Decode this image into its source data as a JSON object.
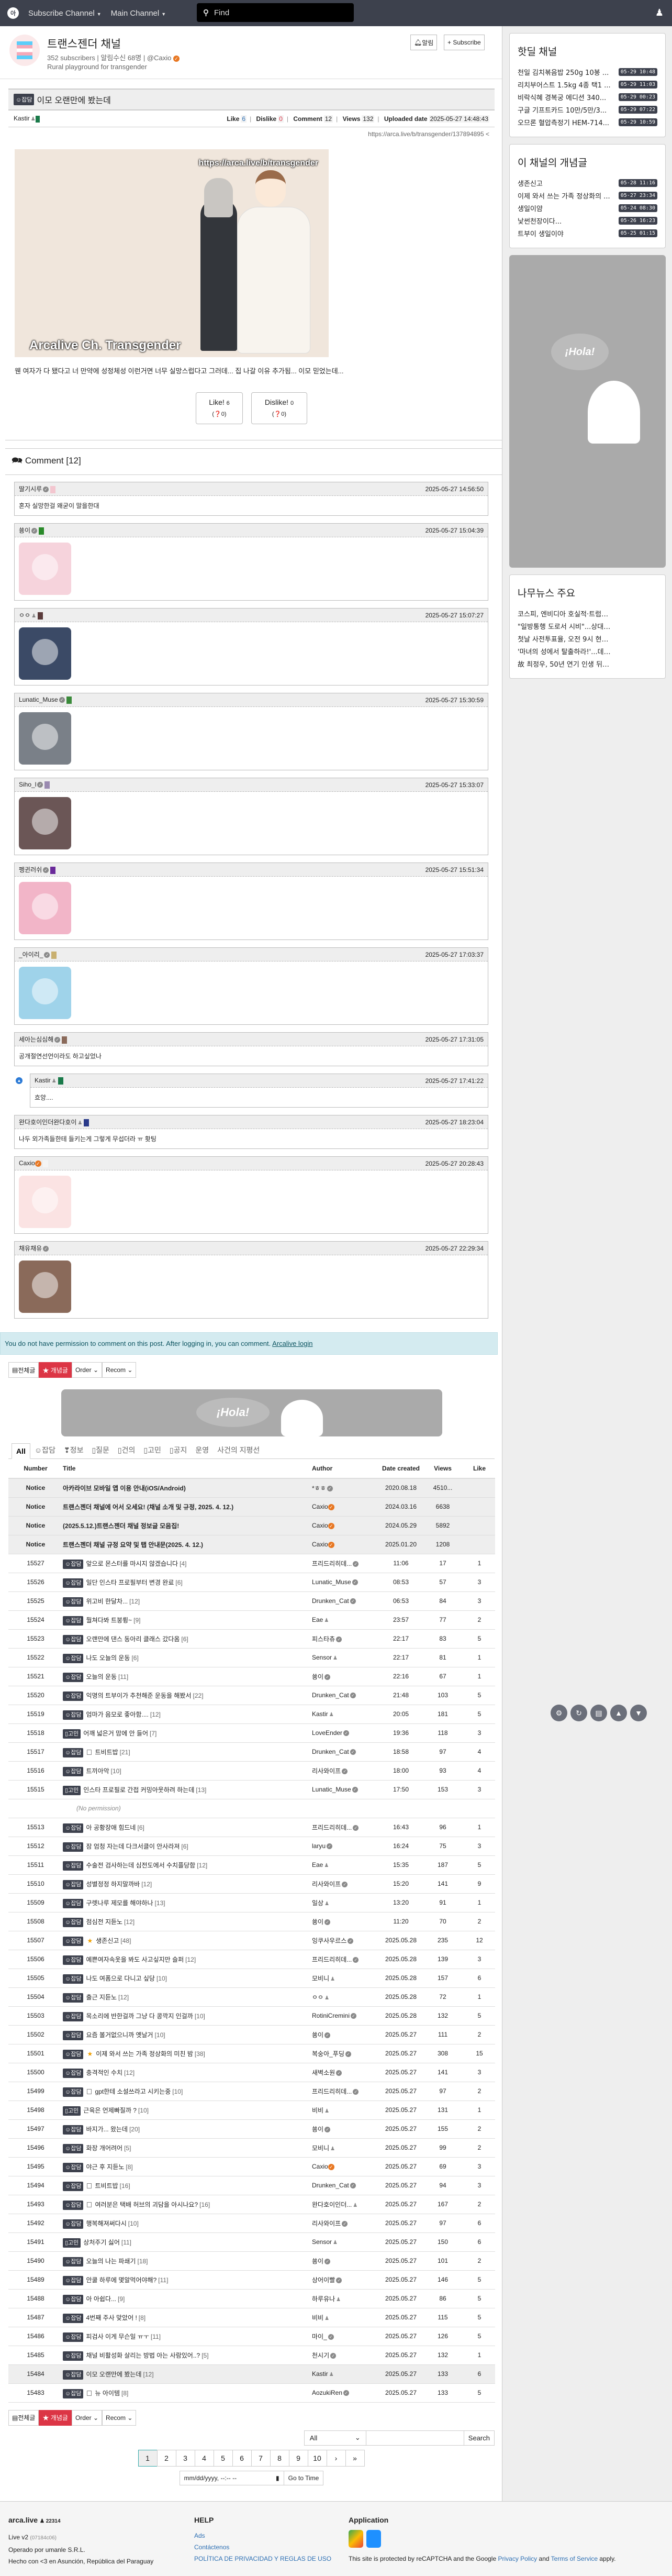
{
  "topbar": {
    "logo": "아",
    "subscribe_channel": "Subscribe Channel",
    "main_channel": "Main Channel",
    "search_placeholder": "Find"
  },
  "channel": {
    "title": "트랜스젠더 채널",
    "subscribers": "352 subscribers",
    "notify_count": "알림수신 68명",
    "owner": "@Caxio",
    "description": "Rural playground for transgender",
    "notify_button": "알림",
    "subscribe_button": "Subscribe"
  },
  "article": {
    "category": "☺잡담",
    "title": "이모 오랜만에 봤는데",
    "author": "Kastir",
    "like_label": "Like",
    "like": "6",
    "dislike_label": "Dislike",
    "dislike": "0",
    "comment_label": "Comment",
    "comments": "12",
    "views_label": "Views",
    "views": "132",
    "date_label": "Uploaded date",
    "date": "2025-05-27 14:48:43",
    "url": "https://arca.live/b/transgender/137894895",
    "image_watermark_top": "https://arca.live/b/transgender",
    "image_watermark_bottom": "Arcalive Ch. Transgender",
    "body": "웬 여자가 다 됐다고 너 만약에 성정체성 이런거면 너무 실망스럽다고 그러데... 집 나갈 이유 추가됨... 이모 믿었는데...",
    "like_button": "Like!",
    "like_sub": "(❓0)",
    "dislike_button": "Dislike!",
    "dislike_sub": "(❓0)"
  },
  "comments_header": "Comment [12]",
  "comments": [
    {
      "author": "딸기시루",
      "badge": "verified",
      "time": "2025-05-27 14:56:50",
      "text": "혼자 실망한걸 왜굳이 말을한대",
      "avatar": "#f3c6cf"
    },
    {
      "author": "쑝이",
      "badge": "verified",
      "time": "2025-05-27 15:04:39",
      "sticker": "#f6d3dc",
      "avatar": "#2a8a2a"
    },
    {
      "author": "ㅇㅇ",
      "badge": "user",
      "time": "2025-05-27 15:07:27",
      "sticker": "#3b4a66",
      "avatar": "#5a3b3b"
    },
    {
      "author": "Lunatic_Muse",
      "badge": "verified",
      "time": "2025-05-27 15:30:59",
      "sticker": "#7a8088",
      "avatar": "#3a8a3a"
    },
    {
      "author": "Siho_l",
      "badge": "verified",
      "time": "2025-05-27 15:33:07",
      "sticker": "#6b5656",
      "avatar": "#9a8ab0"
    },
    {
      "author": "펭귄러쉬",
      "badge": "verified",
      "time": "2025-05-27 15:51:34",
      "sticker": "#f2b5c8",
      "avatar": "#6a2a9a"
    },
    {
      "author": "_아이리_",
      "badge": "verified",
      "time": "2025-05-27 17:03:37",
      "sticker": "#9fd3ea",
      "avatar": "#c9b070"
    },
    {
      "author": "세아는심심해",
      "badge": "verified",
      "time": "2025-05-27 17:31:05",
      "text": "공개절연선언이라도 하고싶었나",
      "avatar": "#8a6a5a"
    },
    {
      "author": "Kastir",
      "badge": "user",
      "time": "2025-05-27 17:41:22",
      "text": "흐앙....",
      "avatar": "#1a7a4a",
      "reply": true
    },
    {
      "author": "완다호이인더완다호이",
      "badge": "user",
      "time": "2025-05-27 18:23:04",
      "text": "나두 외가족들한테 들키는게 그렇게 무섭더라 ㅠ 홧팅",
      "avatar": "#2a3a8a"
    },
    {
      "author": "Caxio",
      "badge": "owner",
      "time": "2025-05-27 20:28:43",
      "sticker": "#fbe3e3",
      "avatar": "#f4f4f4"
    },
    {
      "author": "채유채유",
      "badge": "verified",
      "time": "2025-05-27 22:29:34",
      "sticker": "#8a6a5a",
      "avatar": "#eeeeee"
    }
  ],
  "permission_notice": "You do not have permission to comment on this post. After logging in, you can comment.",
  "login_link": "Arcalive login",
  "list_buttons": {
    "all": "전체글",
    "best": "★ 개념글",
    "order": "Order",
    "recom": "Recom"
  },
  "ad_text": "¡Hola!",
  "tabs": [
    "All",
    "☺잡담",
    "❣정보",
    "▯질문",
    "▯건의",
    "▯고민",
    "▯공지",
    "운영",
    "사건의 지평선"
  ],
  "table_headers": {
    "number": "Number",
    "title": "Title",
    "author": "Author",
    "date": "Date created",
    "views": "Views",
    "like": "Like"
  },
  "notices": [
    {
      "num": "Notice",
      "title": "아카라이브 모바일 앱 이용 안내(iOS/Android)",
      "author": "*ㅎㅎ",
      "badge": "verified",
      "date": "2020.08.18",
      "views": "4510...",
      "like": ""
    },
    {
      "num": "Notice",
      "title": "트랜스젠더 채널에 어서 오세요! (채널 소개 및 규정, 2025. 4. 12.)",
      "author": "Caxio",
      "badge": "owner",
      "date": "2024.03.16",
      "views": "6638",
      "like": ""
    },
    {
      "num": "Notice",
      "title": "(2025.5.12.)트랜스젠더 채널 정보글 모음집!",
      "author": "Caxio",
      "badge": "owner",
      "date": "2024.05.29",
      "views": "5892",
      "like": ""
    },
    {
      "num": "Notice",
      "title": "트랜스젠더 채널 규정 요약 및 탭 안내문(2025. 4. 12.)",
      "author": "Caxio",
      "badge": "owner",
      "date": "2025.01.20",
      "views": "1208",
      "like": ""
    }
  ],
  "no_permission": "(No permission)",
  "posts": [
    {
      "num": "15527",
      "cat": "☺잡담",
      "title": "앞으로 몬스터를 마시지 않겠습니다",
      "c": "[4]",
      "author": "프리드리히데...",
      "badge": "verified",
      "date": "11:06",
      "views": "17",
      "like": "1"
    },
    {
      "num": "15526",
      "cat": "☺잡담",
      "title": "일단 인스타 프로필부터 변경 완료",
      "c": "[6]",
      "author": "Lunatic_Muse",
      "badge": "verified",
      "date": "08:53",
      "views": "57",
      "like": "3"
    },
    {
      "num": "15525",
      "cat": "☺잡담",
      "title": "위고비 한달차...",
      "c": "[12]",
      "author": "Drunken_Cat",
      "badge": "verified",
      "date": "06:53",
      "views": "84",
      "like": "3"
    },
    {
      "num": "15524",
      "cat": "☺잡담",
      "title": "뭘쳐다봐 트붕륑~",
      "c": "[9]",
      "author": "Eae",
      "badge": "user",
      "date": "23:57",
      "views": "77",
      "like": "2"
    },
    {
      "num": "15523",
      "cat": "☺잡담",
      "title": "오랜만에 댄스 동아리 클래스 갔다옴",
      "c": "[6]",
      "author": "피스타츄",
      "badge": "verified",
      "date": "22:17",
      "views": "83",
      "like": "5"
    },
    {
      "num": "15522",
      "cat": "☺잡담",
      "title": "나도 오늘의 운동",
      "c": "[6]",
      "author": "Sensor",
      "badge": "user",
      "date": "22:17",
      "views": "81",
      "like": "1"
    },
    {
      "num": "15521",
      "cat": "☺잡담",
      "title": "오늘의 운동",
      "c": "[11]",
      "author": "쑝이",
      "badge": "verified",
      "date": "22:16",
      "views": "67",
      "like": "1"
    },
    {
      "num": "15520",
      "cat": "☺잡담",
      "title": "익명의 트부이가 추천해준 운동을 해봤서",
      "c": "[22]",
      "author": "Drunken_Cat",
      "badge": "verified",
      "date": "21:48",
      "views": "103",
      "like": "5"
    },
    {
      "num": "15519",
      "cat": "☺잡담",
      "title": "엄마가 음모로 좋아함....",
      "c": "[12]",
      "author": "Kastir",
      "badge": "user",
      "date": "20:05",
      "views": "181",
      "like": "5"
    },
    {
      "num": "15518",
      "cat": "▯고민",
      "title": "어깨 넓은거 맘에 안 들어",
      "c": "[7]",
      "author": "LoveEnder",
      "badge": "verified",
      "date": "19:36",
      "views": "118",
      "like": "3"
    },
    {
      "num": "15517",
      "cat": "☺잡담",
      "icon": "image",
      "title": "트비트밥",
      "c": "[21]",
      "author": "Drunken_Cat",
      "badge": "verified",
      "date": "18:58",
      "views": "97",
      "like": "4"
    },
    {
      "num": "15516",
      "cat": "☺잡담",
      "title": "트끼아악",
      "c": "[10]",
      "author": "리사와이프",
      "badge": "verified",
      "date": "18:00",
      "views": "93",
      "like": "4"
    },
    {
      "num": "15515",
      "cat": "▯고민",
      "title": "인스타 프로필로 간접 커밍아웃하려 하는데",
      "c": "[13]",
      "author": "Lunatic_Muse",
      "badge": "verified",
      "date": "17:50",
      "views": "153",
      "like": "3"
    },
    {
      "noperm": true
    },
    {
      "num": "15513",
      "cat": "☺잡담",
      "title": "아 공황장애 힘드네",
      "c": "[6]",
      "author": "프리드리히데...",
      "badge": "verified",
      "date": "16:43",
      "views": "96",
      "like": "1"
    },
    {
      "num": "15512",
      "cat": "☺잡담",
      "title": "잠 엄청 자는데 다크서클이 안사라져",
      "c": "[6]",
      "author": "laryu",
      "badge": "verified",
      "date": "16:24",
      "views": "75",
      "like": "3"
    },
    {
      "num": "15511",
      "cat": "☺잡담",
      "title": "수술전 검사하는데 심전도에서 수치플당함",
      "c": "[12]",
      "author": "Eae",
      "badge": "user",
      "date": "15:35",
      "views": "187",
      "like": "5"
    },
    {
      "num": "15510",
      "cat": "☺잡담",
      "title": "성별정정 하지말까바",
      "c": "[12]",
      "author": "리사와이프",
      "badge": "verified",
      "date": "15:20",
      "views": "141",
      "like": "9"
    },
    {
      "num": "15509",
      "cat": "☺잡담",
      "title": "구렛나루 제모를 해야하나",
      "c": "[13]",
      "author": "일상",
      "badge": "user",
      "date": "13:20",
      "views": "91",
      "like": "1"
    },
    {
      "num": "15508",
      "cat": "☺잡담",
      "title": "점심전 지듣노",
      "c": "[12]",
      "author": "쑝이",
      "badge": "verified",
      "date": "11:20",
      "views": "70",
      "like": "2"
    },
    {
      "num": "15507",
      "cat": "☺잡담",
      "icon": "star",
      "title": "생존신고",
      "c": "[48]",
      "author": "잉쿠사우르스",
      "badge": "verified",
      "date": "2025.05.28",
      "views": "235",
      "like": "12"
    },
    {
      "num": "15506",
      "cat": "☺잡담",
      "title": "예쁜여자속옷을 봐도 사고싶지만 슬퍼",
      "c": "[12]",
      "author": "프리드리히데...",
      "badge": "verified",
      "date": "2025.05.28",
      "views": "139",
      "like": "3"
    },
    {
      "num": "15505",
      "cat": "☺잡담",
      "title": "나도 여폼으로 다니고 싶당",
      "c": "[10]",
      "author": "모비니",
      "badge": "user",
      "date": "2025.05.28",
      "views": "157",
      "like": "6"
    },
    {
      "num": "15504",
      "cat": "☺잡담",
      "title": "출근 지듣노",
      "c": "[12]",
      "author": "ㅇㅇ",
      "badge": "user",
      "date": "2025.05.28",
      "views": "72",
      "like": "1"
    },
    {
      "num": "15503",
      "cat": "☺잡담",
      "title": "목소리에 반한걸까 그냥 다 콩깍지 인걸까",
      "c": "[10]",
      "author": "RotiniCremini",
      "badge": "verified",
      "date": "2025.05.28",
      "views": "132",
      "like": "5"
    },
    {
      "num": "15502",
      "cat": "☺잡담",
      "title": "요즘 볼거없으니까 옛날거",
      "c": "[10]",
      "author": "쑝이",
      "badge": "verified",
      "date": "2025.05.27",
      "views": "111",
      "like": "2"
    },
    {
      "num": "15501",
      "cat": "☺잡담",
      "icon": "star",
      "title": "이제 와서 쓰는 가족 정상화의 미친 밤",
      "c": "[38]",
      "author": "복숭아_푸딩",
      "badge": "verified",
      "date": "2025.05.27",
      "views": "308",
      "like": "15"
    },
    {
      "num": "15500",
      "cat": "☺잡담",
      "title": "충격적인 수치",
      "c": "[12]",
      "author": "새벽소원",
      "badge": "verified",
      "date": "2025.05.27",
      "views": "141",
      "like": "3"
    },
    {
      "num": "15499",
      "cat": "☺잡담",
      "icon": "image",
      "title": "gpt한테 소설쓰라고 시키는중",
      "c": "[10]",
      "author": "프리드리히데...",
      "badge": "verified",
      "date": "2025.05.27",
      "views": "97",
      "like": "2"
    },
    {
      "num": "15498",
      "cat": "▯고민",
      "title": "근육은 언제빠질까 ?",
      "c": "[10]",
      "author": "비비",
      "badge": "user",
      "date": "2025.05.27",
      "views": "131",
      "like": "1"
    },
    {
      "num": "15497",
      "cat": "☺잡담",
      "title": "바지가... 왔는데",
      "c": "[20]",
      "author": "쑝이",
      "badge": "verified",
      "date": "2025.05.27",
      "views": "155",
      "like": "2"
    },
    {
      "num": "15496",
      "cat": "☺잡담",
      "title": "화장 개어려어",
      "c": "[5]",
      "author": "모비니",
      "badge": "user",
      "date": "2025.05.27",
      "views": "99",
      "like": "2"
    },
    {
      "num": "15495",
      "cat": "☺잡담",
      "title": "야근 후 지듣노",
      "c": "[8]",
      "author": "Caxio",
      "badge": "owner",
      "date": "2025.05.27",
      "views": "69",
      "like": "3"
    },
    {
      "num": "15494",
      "cat": "☺잡담",
      "icon": "image",
      "title": "트비트밥",
      "c": "[16]",
      "author": "Drunken_Cat",
      "badge": "verified",
      "date": "2025.05.27",
      "views": "94",
      "like": "3"
    },
    {
      "num": "15493",
      "cat": "☺잡담",
      "icon": "image",
      "title": "여러분은 택배 허브의 괴담을 아시나요?",
      "c": "[16]",
      "author": "완다호이인더...",
      "badge": "user",
      "date": "2025.05.27",
      "views": "167",
      "like": "2"
    },
    {
      "num": "15492",
      "cat": "☺잡담",
      "title": "행복해져써다시",
      "c": "[10]",
      "author": "리사와이프",
      "badge": "verified",
      "date": "2025.05.27",
      "views": "97",
      "like": "6"
    },
    {
      "num": "15491",
      "cat": "▯고민",
      "title": "상처주기 싫어",
      "c": "[11]",
      "author": "Sensor",
      "badge": "user",
      "date": "2025.05.27",
      "views": "150",
      "like": "6"
    },
    {
      "num": "15490",
      "cat": "☺잡담",
      "title": "오늘의 나는 파쇄기",
      "c": "[18]",
      "author": "쑝이",
      "badge": "verified",
      "date": "2025.05.27",
      "views": "101",
      "like": "2"
    },
    {
      "num": "15489",
      "cat": "☺잡담",
      "title": "안쿨 하루에 몇알먹어야해?",
      "c": "[11]",
      "author": "상어이빨",
      "badge": "verified",
      "date": "2025.05.27",
      "views": "146",
      "like": "5"
    },
    {
      "num": "15488",
      "cat": "☺잡담",
      "title": "아 아쉽다...",
      "c": "[9]",
      "author": "하루유나",
      "badge": "user",
      "date": "2025.05.27",
      "views": "86",
      "like": "5"
    },
    {
      "num": "15487",
      "cat": "☺잡담",
      "title": "4번째 주사 맞았어 !",
      "c": "[8]",
      "author": "비비",
      "badge": "user",
      "date": "2025.05.27",
      "views": "115",
      "like": "5"
    },
    {
      "num": "15486",
      "cat": "☺잡담",
      "title": "피검사 이게 무슨일 ㅠㅜ",
      "c": "[11]",
      "author": "마이_",
      "badge": "verified",
      "date": "2025.05.27",
      "views": "126",
      "like": "5"
    },
    {
      "num": "15485",
      "cat": "☺잡담",
      "title": "채널 비활성화 살리는 방법 아는 사람있어..?",
      "c": "[5]",
      "author": "천시기",
      "badge": "verified",
      "date": "2025.05.27",
      "views": "132",
      "like": "1"
    },
    {
      "num": "15484",
      "cat": "☺잡담",
      "title": "이모 오랜만에 봤는데",
      "c": "[12]",
      "author": "Kastir",
      "badge": "user",
      "date": "2025.05.27",
      "views": "133",
      "like": "6",
      "current": true
    },
    {
      "num": "15483",
      "cat": "☺잡담",
      "icon": "image",
      "title": "뉴 아이템",
      "c": "[8]",
      "author": "AozukiRen",
      "badge": "verified",
      "date": "2025.05.27",
      "views": "133",
      "like": "5"
    }
  ],
  "search": {
    "scope": "All",
    "button": "Search",
    "value": ""
  },
  "pagination": [
    "1",
    "2",
    "3",
    "4",
    "5",
    "6",
    "7",
    "8",
    "9",
    "10",
    "›",
    "»"
  ],
  "current_page": "1",
  "time_input_placeholder": "mm/dd/yyyy, --:-- --",
  "go_to_time": "Go to Time",
  "sidebar": {
    "hotdeal": {
      "title": "핫딜 채널",
      "items": [
        {
          "t": "천일 김치볶음밥 250g 10봉 ...",
          "d": "05-29 10:48"
        },
        {
          "t": "리치부어스트 1.5kg 4종 택1 ...",
          "d": "05-29 11:03"
        },
        {
          "t": "비락식혜 경복궁 에디션 340...",
          "d": "05-29 00:23"
        },
        {
          "t": "구글 기프트카드 10만/5만/3...",
          "d": "05-29 07:22"
        },
        {
          "t": "오므론 혈압측정기 HEM-714...",
          "d": "05-29 10:59"
        }
      ]
    },
    "best": {
      "title": "이 채널의 개념글",
      "items": [
        {
          "t": "생존신고",
          "d": "05-28 11:16"
        },
        {
          "t": "이제 와서 쓰는 가족 정상화의 ...",
          "d": "05-27 23:34"
        },
        {
          "t": "생일이얌",
          "d": "05-24 08:30"
        },
        {
          "t": "낯썬천장이다...",
          "d": "05-26 16:23"
        },
        {
          "t": "트부이 생일이야",
          "d": "05-25 01:15"
        }
      ]
    },
    "news": {
      "title": "나무뉴스 주요",
      "items": [
        "코스피, 엔비디아 호실적·트럼프 관세 제동에...",
        "\"일방통행 도로서 시비\"...상대차량 동승자 ...",
        "첫날 사전투표율, 오전 9시 현재 3.55%...동...",
        "'마녀의 성에서 탈출하라!'...데브시스터즈 성...",
        "故 최정우, 50년 연기 인생 뒤로하고 영면......"
      ]
    }
  },
  "footer": {
    "site": "arca.live",
    "users": "22314",
    "version": "Live v2",
    "build": "(07184c06)",
    "operator": "Operado por umanle S.R.L.",
    "made": "Hecho con <3 en Asunción, República del Paraguay",
    "help_title": "HELP",
    "ads": "Ads",
    "contact": "Contáctenos",
    "policy": "POLÍTICA DE PRIVACIDAD Y REGLAS DE USO",
    "app_title": "Application",
    "recaptcha_pre": "This site is protected by reCAPTCHA and the Google",
    "privacy": "Privacy Policy",
    "and": "and",
    "terms": "Terms of Service",
    "apply": "apply."
  },
  "colors": {
    "topbar": "#3d414d",
    "accent_red": "#dc3545",
    "owner_badge": "#e87722",
    "notice_bg": "#d4ebf0"
  }
}
